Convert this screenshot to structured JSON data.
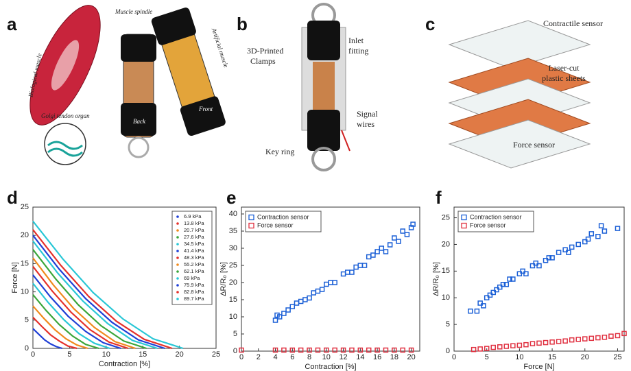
{
  "panels": [
    {
      "label": "a",
      "annotations": [
        {
          "lines": [
            "Muscle spindle"
          ]
        },
        {
          "lines": [
            "Biological muscle"
          ]
        },
        {
          "lines": [
            "Artificial muscle"
          ]
        },
        {
          "lines": [
            "Golgi tendon organ"
          ]
        },
        {
          "lines": [
            "Front"
          ]
        },
        {
          "lines": [
            "Back"
          ]
        }
      ]
    },
    {
      "label": "b",
      "annotations": [
        {
          "lines": [
            "3D-Printed",
            "Clamps"
          ]
        },
        {
          "lines": [
            "Inlet",
            "fitting"
          ]
        },
        {
          "lines": [
            "Signal",
            "wires"
          ]
        },
        {
          "lines": [
            "Key ring"
          ]
        }
      ]
    },
    {
      "label": "c",
      "annotations": [
        {
          "lines": [
            "Contractile sensor"
          ]
        },
        {
          "lines": [
            "Laser-cut",
            "plastic sheets"
          ]
        },
        {
          "lines": [
            "Force sensor"
          ]
        }
      ]
    }
  ],
  "chart_data": [
    {
      "type": "line",
      "label": "d",
      "xlabel": "Contraction [%]",
      "ylabel": "Force [N]",
      "xlim": [
        0,
        25
      ],
      "xticks": [
        0,
        5,
        10,
        15,
        20,
        25
      ],
      "ylim": [
        0,
        25
      ],
      "yticks": [
        0,
        5,
        10,
        15,
        20,
        25
      ],
      "legend": "upper right",
      "series": [
        {
          "name": "6.9 kPa",
          "color": "#1f3fd6",
          "x": [
            0,
            0.8,
            1.6,
            2.4,
            3.2,
            4
          ],
          "values": [
            3.5,
            2.5,
            1.5,
            0.8,
            0.3,
            0
          ]
        },
        {
          "name": "13.8 kPa",
          "color": "#e5312b",
          "x": [
            0,
            1.2,
            2.4,
            3.6,
            4.8,
            6
          ],
          "values": [
            5.5,
            3.9,
            2.4,
            1.3,
            0.4,
            0
          ]
        },
        {
          "name": "20.7 kPa",
          "color": "#f08a1c",
          "x": [
            0,
            1.5,
            3,
            4.5,
            6,
            7.5
          ],
          "values": [
            7.5,
            5.3,
            3.3,
            1.7,
            0.6,
            0
          ]
        },
        {
          "name": "27.6 kPa",
          "color": "#3aa63a",
          "x": [
            0,
            1.8,
            3.6,
            5.4,
            7.2,
            9
          ],
          "values": [
            9.5,
            6.7,
            4.2,
            2.2,
            0.7,
            0
          ]
        },
        {
          "name": "34.5 kPa",
          "color": "#29c7d6",
          "x": [
            0,
            2.1,
            4.2,
            6.3,
            8.4,
            10.5
          ],
          "values": [
            11.5,
            8.1,
            5.1,
            2.6,
            0.9,
            0
          ]
        },
        {
          "name": "41.4 kPa",
          "color": "#1f3fd6",
          "x": [
            0,
            2.4,
            4.8,
            7.2,
            9.6,
            12
          ],
          "values": [
            13,
            9.1,
            5.7,
            3,
            1,
            0
          ]
        },
        {
          "name": "48.3 kPa",
          "color": "#e5312b",
          "x": [
            0,
            2.6,
            5.2,
            7.8,
            10.4,
            13
          ],
          "values": [
            14.5,
            10.2,
            6.4,
            3.3,
            1.1,
            0
          ]
        },
        {
          "name": "55.2 kPa",
          "color": "#f08a1c",
          "x": [
            0,
            2.8,
            5.6,
            8.4,
            11.2,
            14
          ],
          "values": [
            16,
            11.2,
            7,
            3.7,
            1.2,
            0
          ]
        },
        {
          "name": "62.1 kPa",
          "color": "#3aa63a",
          "x": [
            0,
            3.1,
            6.2,
            9.3,
            12.4,
            15.5
          ],
          "values": [
            17.5,
            12.3,
            7.7,
            4,
            1.3,
            0
          ]
        },
        {
          "name": "69 kPa",
          "color": "#29c7d6",
          "x": [
            0,
            3.4,
            6.8,
            10.2,
            13.6,
            17
          ],
          "values": [
            19,
            13.3,
            8.4,
            4.4,
            1.4,
            0
          ]
        },
        {
          "name": "75.9 kPa",
          "color": "#1f3fd6",
          "x": [
            0,
            3.6,
            7.2,
            10.8,
            14.4,
            18
          ],
          "values": [
            20,
            14,
            8.8,
            4.6,
            1.5,
            0
          ]
        },
        {
          "name": "82.8 kPa",
          "color": "#e5312b",
          "x": [
            0,
            3.8,
            7.6,
            11.4,
            15.2,
            19
          ],
          "values": [
            21,
            14.7,
            9.2,
            4.8,
            1.6,
            0
          ]
        },
        {
          "name": "89.7 kPa",
          "color": "#29c7d6",
          "x": [
            0,
            4.1,
            8.2,
            12.3,
            16.4,
            20.5
          ],
          "values": [
            22.5,
            15.8,
            9.9,
            5.2,
            1.7,
            0
          ]
        }
      ]
    },
    {
      "type": "scatter",
      "label": "e",
      "xlabel": "Contraction [%]",
      "ylabel": "ΔR/R₀ [%]",
      "xlim": [
        0,
        21
      ],
      "xticks": [
        0,
        2,
        4,
        6,
        8,
        10,
        12,
        14,
        16,
        18,
        20
      ],
      "ylim": [
        0,
        42
      ],
      "yticks": [
        0,
        5,
        10,
        15,
        20,
        25,
        30,
        35,
        40
      ],
      "legend": "upper left",
      "series": [
        {
          "name": "Contraction sensor",
          "color": "#1a5fd6",
          "x": [
            4,
            4.2,
            4.5,
            5,
            5.5,
            6,
            6.5,
            7,
            7.5,
            8,
            8.5,
            9,
            9.5,
            10,
            10.5,
            11,
            12,
            12.5,
            13,
            13.5,
            14,
            14.5,
            15,
            15.5,
            16,
            16.5,
            17,
            17.5,
            18,
            18.5,
            19,
            19.5,
            20,
            20.2
          ],
          "values": [
            9,
            10.5,
            10,
            11,
            12,
            13,
            14,
            14.5,
            15,
            15.5,
            17,
            17.5,
            18,
            19.5,
            20,
            20,
            22.5,
            23,
            23,
            24.5,
            25,
            25,
            27.5,
            28,
            29,
            30,
            29,
            31,
            33,
            32,
            35,
            34,
            36,
            37
          ]
        },
        {
          "name": "Force sensor",
          "color": "#e03040",
          "x": [
            0,
            4,
            5,
            6,
            7,
            8,
            9,
            10,
            11,
            12,
            13,
            14,
            15,
            16,
            17,
            18,
            19,
            20
          ],
          "values": [
            0.3,
            0.3,
            0.3,
            0.3,
            0.3,
            0.3,
            0.3,
            0.3,
            0.3,
            0.3,
            0.3,
            0.3,
            0.3,
            0.3,
            0.3,
            0.3,
            0.3,
            0.3
          ]
        }
      ]
    },
    {
      "type": "scatter",
      "label": "f",
      "xlabel": "Force [N]",
      "ylabel": "ΔR/R₀ [%]",
      "xlim": [
        0,
        26
      ],
      "xticks": [
        0,
        5,
        10,
        15,
        20,
        25
      ],
      "ylim": [
        0,
        27
      ],
      "yticks": [
        0,
        5,
        10,
        15,
        20,
        25
      ],
      "legend": "upper left",
      "series": [
        {
          "name": "Contraction sensor",
          "color": "#1a5fd6",
          "x": [
            2.5,
            3.5,
            4,
            4.5,
            5,
            5.5,
            6,
            6.5,
            7,
            7.5,
            8,
            8.5,
            9,
            10,
            10.5,
            11,
            12,
            12.5,
            13,
            14,
            14.5,
            15,
            16,
            17,
            17.5,
            18,
            19,
            20,
            20.5,
            21,
            22,
            22.5,
            23,
            25
          ],
          "values": [
            7.5,
            7.5,
            9,
            8.5,
            10,
            10.5,
            11,
            11.5,
            12,
            12.5,
            12.5,
            13.5,
            13.5,
            14.5,
            15,
            14.5,
            16,
            16.5,
            16,
            17,
            17.5,
            17.5,
            18.5,
            19,
            18.5,
            19.5,
            20,
            20.5,
            21,
            22,
            21.5,
            23.5,
            22.5,
            23
          ]
        },
        {
          "name": "Force sensor",
          "color": "#e03040",
          "x": [
            3,
            4,
            5,
            6,
            7,
            8,
            9,
            10,
            11,
            12,
            13,
            14,
            15,
            16,
            17,
            18,
            19,
            20,
            21,
            22,
            23,
            24,
            25,
            26
          ],
          "values": [
            0.3,
            0.4,
            0.5,
            0.7,
            0.8,
            0.9,
            1,
            1.1,
            1.2,
            1.4,
            1.5,
            1.6,
            1.7,
            1.8,
            1.9,
            2.1,
            2.2,
            2.3,
            2.4,
            2.5,
            2.6,
            2.8,
            2.9,
            3.3
          ]
        }
      ]
    }
  ]
}
